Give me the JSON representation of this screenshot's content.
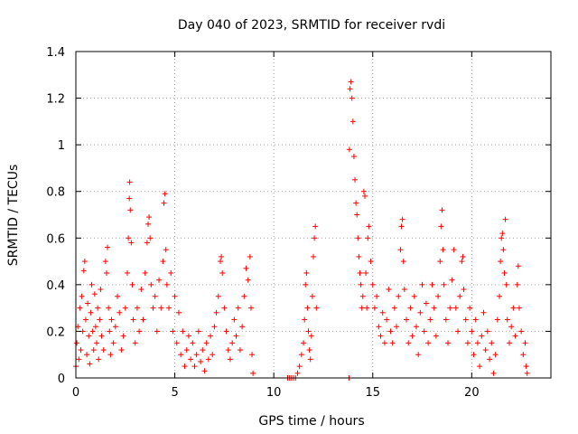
{
  "chart_data": {
    "type": "scatter",
    "title": "Day 040 of 2023, SRMTID for receiver rvdi",
    "xlabel": "GPS time / hours",
    "ylabel": "SRMTID / TECUs",
    "xlim": [
      0,
      24
    ],
    "ylim": [
      0,
      1.4
    ],
    "x_ticks": [
      0,
      5,
      10,
      15,
      20
    ],
    "x_tick_labels": [
      "0",
      "5",
      "10",
      "15",
      "20"
    ],
    "y_ticks": [
      0,
      0.2,
      0.4,
      0.6,
      0.8,
      1.0,
      1.2,
      1.4
    ],
    "y_tick_labels": [
      "0",
      "0.2",
      "0.4",
      "0.6",
      "0.8",
      "1",
      "1.2",
      "1.4"
    ],
    "grid": true,
    "marker": "+",
    "series": [
      {
        "name": "SRMTID",
        "color": "#ff0000",
        "points": [
          [
            0.0,
            0.05
          ],
          [
            0.05,
            0.15
          ],
          [
            0.1,
            0.22
          ],
          [
            0.15,
            0.08
          ],
          [
            0.2,
            0.3
          ],
          [
            0.25,
            0.12
          ],
          [
            0.3,
            0.35
          ],
          [
            0.35,
            0.2
          ],
          [
            0.4,
            0.46
          ],
          [
            0.45,
            0.5
          ],
          [
            0.5,
            0.25
          ],
          [
            0.55,
            0.1
          ],
          [
            0.6,
            0.32
          ],
          [
            0.65,
            0.18
          ],
          [
            0.7,
            0.06
          ],
          [
            0.75,
            0.28
          ],
          [
            0.8,
            0.4
          ],
          [
            0.85,
            0.2
          ],
          [
            0.9,
            0.12
          ],
          [
            0.95,
            0.36
          ],
          [
            1.0,
            0.22
          ],
          [
            1.05,
            0.15
          ],
          [
            1.1,
            0.3
          ],
          [
            1.15,
            0.08
          ],
          [
            1.2,
            0.25
          ],
          [
            1.25,
            0.38
          ],
          [
            1.3,
            0.18
          ],
          [
            1.4,
            0.12
          ],
          [
            1.5,
            0.5
          ],
          [
            1.55,
            0.45
          ],
          [
            1.6,
            0.56
          ],
          [
            1.65,
            0.3
          ],
          [
            1.7,
            0.2
          ],
          [
            1.75,
            0.1
          ],
          [
            1.8,
            0.25
          ],
          [
            1.9,
            0.15
          ],
          [
            2.0,
            0.22
          ],
          [
            2.1,
            0.35
          ],
          [
            2.2,
            0.28
          ],
          [
            2.3,
            0.12
          ],
          [
            2.4,
            0.18
          ],
          [
            2.5,
            0.3
          ],
          [
            2.6,
            0.45
          ],
          [
            2.65,
            0.6
          ],
          [
            2.7,
            0.77
          ],
          [
            2.72,
            0.84
          ],
          [
            2.75,
            0.72
          ],
          [
            2.8,
            0.58
          ],
          [
            2.85,
            0.4
          ],
          [
            2.9,
            0.25
          ],
          [
            3.0,
            0.15
          ],
          [
            3.1,
            0.3
          ],
          [
            3.2,
            0.2
          ],
          [
            3.3,
            0.38
          ],
          [
            3.4,
            0.25
          ],
          [
            3.5,
            0.45
          ],
          [
            3.6,
            0.58
          ],
          [
            3.65,
            0.66
          ],
          [
            3.7,
            0.69
          ],
          [
            3.75,
            0.6
          ],
          [
            3.8,
            0.4
          ],
          [
            3.9,
            0.3
          ],
          [
            4.0,
            0.35
          ],
          [
            4.1,
            0.2
          ],
          [
            4.2,
            0.42
          ],
          [
            4.3,
            0.3
          ],
          [
            4.4,
            0.5
          ],
          [
            4.45,
            0.75
          ],
          [
            4.5,
            0.79
          ],
          [
            4.55,
            0.55
          ],
          [
            4.6,
            0.4
          ],
          [
            4.7,
            0.3
          ],
          [
            4.8,
            0.45
          ],
          [
            4.9,
            0.2
          ],
          [
            5.0,
            0.35
          ],
          [
            5.1,
            0.15
          ],
          [
            5.2,
            0.28
          ],
          [
            5.3,
            0.1
          ],
          [
            5.4,
            0.2
          ],
          [
            5.5,
            0.05
          ],
          [
            5.6,
            0.12
          ],
          [
            5.7,
            0.18
          ],
          [
            5.8,
            0.08
          ],
          [
            5.9,
            0.15
          ],
          [
            6.0,
            0.05
          ],
          [
            6.1,
            0.1
          ],
          [
            6.2,
            0.2
          ],
          [
            6.3,
            0.07
          ],
          [
            6.4,
            0.12
          ],
          [
            6.5,
            0.03
          ],
          [
            6.6,
            0.15
          ],
          [
            6.7,
            0.08
          ],
          [
            6.8,
            0.18
          ],
          [
            6.9,
            0.1
          ],
          [
            7.0,
            0.22
          ],
          [
            7.1,
            0.28
          ],
          [
            7.2,
            0.35
          ],
          [
            7.3,
            0.5
          ],
          [
            7.35,
            0.52
          ],
          [
            7.4,
            0.45
          ],
          [
            7.5,
            0.3
          ],
          [
            7.6,
            0.2
          ],
          [
            7.7,
            0.12
          ],
          [
            7.8,
            0.08
          ],
          [
            7.9,
            0.15
          ],
          [
            8.0,
            0.25
          ],
          [
            8.1,
            0.18
          ],
          [
            8.2,
            0.3
          ],
          [
            8.3,
            0.12
          ],
          [
            8.4,
            0.22
          ],
          [
            8.5,
            0.35
          ],
          [
            8.6,
            0.47
          ],
          [
            8.7,
            0.42
          ],
          [
            8.8,
            0.52
          ],
          [
            8.85,
            0.3
          ],
          [
            8.9,
            0.1
          ],
          [
            8.95,
            0.02
          ],
          [
            10.7,
            0.0
          ],
          [
            10.8,
            0.0
          ],
          [
            10.9,
            0.0
          ],
          [
            11.0,
            0.0
          ],
          [
            11.1,
            0.0
          ],
          [
            11.2,
            0.02
          ],
          [
            11.3,
            0.05
          ],
          [
            11.4,
            0.1
          ],
          [
            11.5,
            0.15
          ],
          [
            11.55,
            0.25
          ],
          [
            11.6,
            0.4
          ],
          [
            11.65,
            0.45
          ],
          [
            11.7,
            0.3
          ],
          [
            11.75,
            0.2
          ],
          [
            11.8,
            0.12
          ],
          [
            11.85,
            0.08
          ],
          [
            11.9,
            0.18
          ],
          [
            11.95,
            0.35
          ],
          [
            12.0,
            0.52
          ],
          [
            12.05,
            0.6
          ],
          [
            12.1,
            0.65
          ],
          [
            12.15,
            0.3
          ],
          [
            13.8,
            0.0
          ],
          [
            13.82,
            0.98
          ],
          [
            13.85,
            1.24
          ],
          [
            13.9,
            1.27
          ],
          [
            13.95,
            1.2
          ],
          [
            14.0,
            1.1
          ],
          [
            14.05,
            0.95
          ],
          [
            14.1,
            0.85
          ],
          [
            14.15,
            0.75
          ],
          [
            14.2,
            0.7
          ],
          [
            14.25,
            0.6
          ],
          [
            14.3,
            0.52
          ],
          [
            14.35,
            0.45
          ],
          [
            14.4,
            0.4
          ],
          [
            14.45,
            0.3
          ],
          [
            14.5,
            0.35
          ],
          [
            14.55,
            0.8
          ],
          [
            14.6,
            0.78
          ],
          [
            14.65,
            0.45
          ],
          [
            14.7,
            0.3
          ],
          [
            14.75,
            0.6
          ],
          [
            14.8,
            0.65
          ],
          [
            14.9,
            0.5
          ],
          [
            15.0,
            0.4
          ],
          [
            15.1,
            0.3
          ],
          [
            15.2,
            0.35
          ],
          [
            15.3,
            0.22
          ],
          [
            15.4,
            0.18
          ],
          [
            15.5,
            0.28
          ],
          [
            15.6,
            0.15
          ],
          [
            15.7,
            0.25
          ],
          [
            15.8,
            0.38
          ],
          [
            15.9,
            0.2
          ],
          [
            16.0,
            0.15
          ],
          [
            16.1,
            0.3
          ],
          [
            16.2,
            0.22
          ],
          [
            16.3,
            0.35
          ],
          [
            16.4,
            0.55
          ],
          [
            16.45,
            0.65
          ],
          [
            16.5,
            0.68
          ],
          [
            16.55,
            0.5
          ],
          [
            16.6,
            0.38
          ],
          [
            16.7,
            0.25
          ],
          [
            16.8,
            0.15
          ],
          [
            16.9,
            0.3
          ],
          [
            17.0,
            0.18
          ],
          [
            17.1,
            0.35
          ],
          [
            17.2,
            0.22
          ],
          [
            17.3,
            0.1
          ],
          [
            17.4,
            0.28
          ],
          [
            17.5,
            0.4
          ],
          [
            17.6,
            0.2
          ],
          [
            17.7,
            0.32
          ],
          [
            17.8,
            0.15
          ],
          [
            17.9,
            0.25
          ],
          [
            18.0,
            0.4
          ],
          [
            18.1,
            0.3
          ],
          [
            18.2,
            0.18
          ],
          [
            18.3,
            0.35
          ],
          [
            18.4,
            0.5
          ],
          [
            18.45,
            0.65
          ],
          [
            18.5,
            0.72
          ],
          [
            18.55,
            0.55
          ],
          [
            18.6,
            0.4
          ],
          [
            18.7,
            0.25
          ],
          [
            18.8,
            0.15
          ],
          [
            18.9,
            0.3
          ],
          [
            19.0,
            0.42
          ],
          [
            19.1,
            0.55
          ],
          [
            19.2,
            0.3
          ],
          [
            19.3,
            0.2
          ],
          [
            19.4,
            0.35
          ],
          [
            19.5,
            0.5
          ],
          [
            19.55,
            0.52
          ],
          [
            19.6,
            0.38
          ],
          [
            19.7,
            0.25
          ],
          [
            19.8,
            0.15
          ],
          [
            19.9,
            0.3
          ],
          [
            20.0,
            0.2
          ],
          [
            20.1,
            0.1
          ],
          [
            20.2,
            0.25
          ],
          [
            20.3,
            0.15
          ],
          [
            20.4,
            0.05
          ],
          [
            20.5,
            0.18
          ],
          [
            20.6,
            0.28
          ],
          [
            20.7,
            0.12
          ],
          [
            20.8,
            0.2
          ],
          [
            20.9,
            0.08
          ],
          [
            21.0,
            0.15
          ],
          [
            21.1,
            0.02
          ],
          [
            21.2,
            0.1
          ],
          [
            21.3,
            0.25
          ],
          [
            21.4,
            0.35
          ],
          [
            21.45,
            0.5
          ],
          [
            21.5,
            0.6
          ],
          [
            21.55,
            0.62
          ],
          [
            21.6,
            0.55
          ],
          [
            21.65,
            0.45
          ],
          [
            21.7,
            0.68
          ],
          [
            21.75,
            0.4
          ],
          [
            21.8,
            0.25
          ],
          [
            21.9,
            0.15
          ],
          [
            22.0,
            0.22
          ],
          [
            22.1,
            0.3
          ],
          [
            22.2,
            0.18
          ],
          [
            22.3,
            0.4
          ],
          [
            22.35,
            0.48
          ],
          [
            22.4,
            0.3
          ],
          [
            22.5,
            0.2
          ],
          [
            22.6,
            0.1
          ],
          [
            22.7,
            0.15
          ],
          [
            22.75,
            0.05
          ],
          [
            22.8,
            0.02
          ]
        ]
      }
    ]
  }
}
